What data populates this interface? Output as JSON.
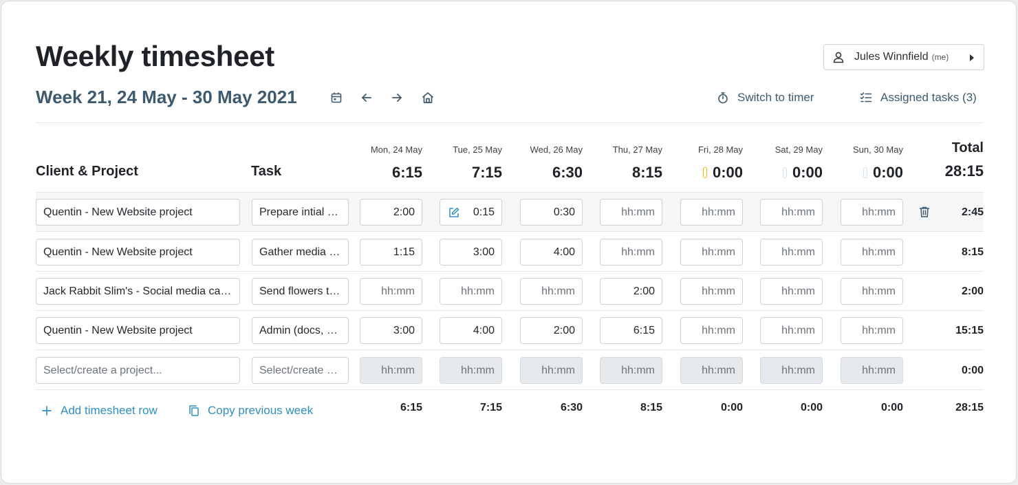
{
  "header": {
    "title": "Weekly timesheet",
    "user_name": "Jules Winnfield",
    "user_tag": "(me)",
    "week_label": "Week 21, 24 May - 30 May 2021",
    "switch_timer": "Switch to timer",
    "assigned_tasks": "Assigned tasks (3)"
  },
  "columns": {
    "project": "Client & Project",
    "task": "Task",
    "total": "Total"
  },
  "days": [
    {
      "name": "Mon, 24 May",
      "total": "6:15"
    },
    {
      "name": "Tue, 25 May",
      "total": "7:15"
    },
    {
      "name": "Wed, 26 May",
      "total": "6:30"
    },
    {
      "name": "Thu, 27 May",
      "total": "8:15"
    },
    {
      "name": "Fri, 28 May",
      "total": "0:00"
    },
    {
      "name": "Sat, 29 May",
      "total": "0:00"
    },
    {
      "name": "Sun, 30 May",
      "total": "0:00"
    }
  ],
  "grand_total": "28:15",
  "placeholder_time": "hh:mm",
  "rows": [
    {
      "project": "Quentin - New Website project",
      "task": "Prepare intial wireframes",
      "times": [
        "2:00",
        "0:15",
        "0:30",
        "",
        "",
        "",
        ""
      ],
      "total": "2:45"
    },
    {
      "project": "Quentin - New Website project",
      "task": "Gather media files",
      "times": [
        "1:15",
        "3:00",
        "4:00",
        "",
        "",
        "",
        ""
      ],
      "total": "8:15"
    },
    {
      "project": "Jack Rabbit Slim's - Social media campaign",
      "task": "Send flowers to client",
      "times": [
        "",
        "",
        "",
        "2:00",
        "",
        "",
        ""
      ],
      "total": "2:00"
    },
    {
      "project": "Quentin - New Website project",
      "task": "Admin (docs, emails)",
      "times": [
        "3:00",
        "4:00",
        "2:00",
        "6:15",
        "",
        "",
        ""
      ],
      "total": "15:15"
    }
  ],
  "new_row": {
    "project_placeholder": "Select/create a project...",
    "task_placeholder": "Select/create a task...",
    "total": "0:00"
  },
  "footer": {
    "add_row": "Add timesheet row",
    "copy_week": "Copy previous week",
    "day_totals": [
      "6:15",
      "7:15",
      "6:30",
      "8:15",
      "0:00",
      "0:00",
      "0:00"
    ],
    "grand_total": "28:15"
  },
  "colors": {
    "accent_link": "#2e8fc0",
    "heading_blue": "#3d5a6e",
    "overtime_bar": "#f5b800",
    "empty_bar": "#cfe3f2"
  },
  "icons": [
    "user-icon",
    "calendar-icon",
    "arrow-left-icon",
    "arrow-right-icon",
    "home-icon",
    "stopwatch-icon",
    "checklist-icon",
    "edit-icon",
    "trash-icon",
    "plus-icon",
    "copy-icon"
  ]
}
